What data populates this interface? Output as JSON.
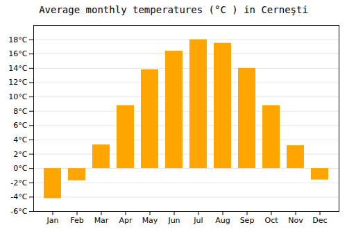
{
  "chart_data": {
    "type": "bar",
    "title": "Average monthly temperatures (°C ) in Cerneşti",
    "categories": [
      "Jan",
      "Feb",
      "Mar",
      "Apr",
      "May",
      "Jun",
      "Jul",
      "Aug",
      "Sep",
      "Oct",
      "Nov",
      "Dec"
    ],
    "values": [
      -4.2,
      -1.7,
      3.3,
      8.8,
      13.8,
      16.4,
      18.0,
      17.5,
      14.0,
      8.8,
      3.2,
      -1.6
    ],
    "color": "#FFA500",
    "ylim": [
      -6,
      20
    ],
    "yticks": [
      {
        "value": -6,
        "label": "-6°C"
      },
      {
        "value": -4,
        "label": "-4°C"
      },
      {
        "value": -2,
        "label": "-2°C"
      },
      {
        "value": 0,
        "label": "0°C"
      },
      {
        "value": 2,
        "label": "2°C"
      },
      {
        "value": 4,
        "label": "4°C"
      },
      {
        "value": 6,
        "label": "6°C"
      },
      {
        "value": 8,
        "label": "8°C"
      },
      {
        "value": 10,
        "label": "10°C"
      },
      {
        "value": 12,
        "label": "12°C"
      },
      {
        "value": 14,
        "label": "14°C"
      },
      {
        "value": 16,
        "label": "16°C"
      },
      {
        "value": 18,
        "label": "18°C"
      }
    ],
    "grid": true
  }
}
